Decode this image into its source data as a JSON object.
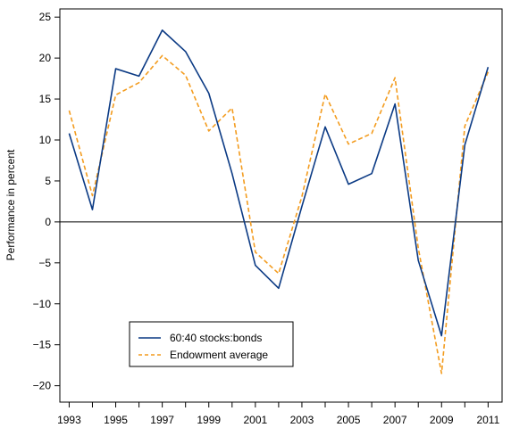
{
  "chart_data": {
    "type": "line",
    "title": "",
    "xlabel": "",
    "ylabel": "Performance in percent",
    "x": [
      1993,
      1994,
      1995,
      1996,
      1997,
      1998,
      1999,
      2000,
      2001,
      2002,
      2003,
      2004,
      2005,
      2006,
      2007,
      2008,
      2009,
      2010,
      2011
    ],
    "x_tick_labels": [
      "1993",
      "1995",
      "1997",
      "1999",
      "2001",
      "2003",
      "2005",
      "2007",
      "2009",
      "2011"
    ],
    "y_ticks": [
      -20,
      -15,
      -10,
      -5,
      0,
      5,
      10,
      15,
      20,
      25
    ],
    "ylim": [
      -22,
      26
    ],
    "xlim": [
      1992.6,
      2011.6
    ],
    "grid": false,
    "zero_line": true,
    "legend_position": "bottom-left",
    "series": [
      {
        "name": "60:40 stocks:bonds",
        "color": "#0b3a84",
        "style": "solid",
        "values": [
          10.8,
          1.5,
          18.7,
          17.8,
          23.4,
          20.8,
          15.7,
          5.9,
          -5.3,
          -8.1,
          1.9,
          11.6,
          4.6,
          5.9,
          14.4,
          -4.7,
          -13.9,
          9.4,
          18.9
        ]
      },
      {
        "name": "Endowment average",
        "color": "#f39c1f",
        "style": "dashed",
        "values": [
          13.6,
          3.2,
          15.5,
          17.0,
          20.3,
          17.9,
          11.1,
          13.9,
          -3.7,
          -6.3,
          3.1,
          15.6,
          9.5,
          10.8,
          17.6,
          -3.2,
          -18.5,
          11.7,
          18.3
        ]
      }
    ]
  }
}
